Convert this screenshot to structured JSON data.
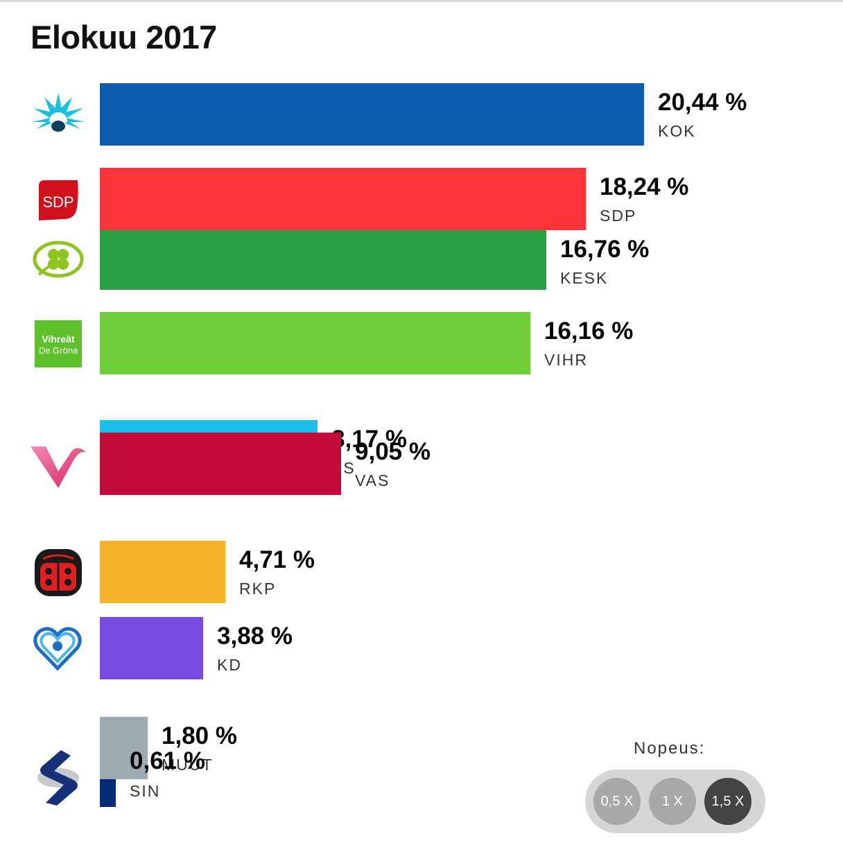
{
  "title": "Elokuu 2017",
  "chart_data": {
    "type": "bar",
    "orientation": "horizontal",
    "unit": "%",
    "xlim": [
      0,
      21
    ],
    "series": [
      {
        "code": "KOK",
        "label": "20,44 %",
        "value": 20.44,
        "color": "#0e5db1",
        "logo": "kok-cornflower-icon"
      },
      {
        "code": "SDP",
        "label": "18,24 %",
        "value": 18.24,
        "color": "#fd353b",
        "logo": "sdp-logo-icon"
      },
      {
        "code": "KESK",
        "label": "16,76 %",
        "value": 16.76,
        "color": "#279f43",
        "logo": "kesk-clover-icon"
      },
      {
        "code": "VIHR",
        "label": "16,16 %",
        "value": 16.16,
        "color": "#6fcd3a",
        "logo": "vihr-logo-icon"
      },
      {
        "code": "PS",
        "label": "8,17 %",
        "value": 8.17,
        "color": "#1cbde9",
        "logo": ""
      },
      {
        "code": "VAS",
        "label": "9,05 %",
        "value": 9.05,
        "color": "#c10a35",
        "logo": "vas-v-icon"
      },
      {
        "code": "RKP",
        "label": "4,71 %",
        "value": 4.71,
        "color": "#f5b32a",
        "logo": "rkp-ladybug-icon"
      },
      {
        "code": "KD",
        "label": "3,88 %",
        "value": 3.88,
        "color": "#774ae1",
        "logo": "kd-heart-icon"
      },
      {
        "code": "MUUT",
        "label": "1,80 %",
        "value": 1.8,
        "color": "#9fabb2",
        "logo": ""
      },
      {
        "code": "SIN",
        "label": "0,61 %",
        "value": 0.61,
        "color": "#062a76",
        "logo": "sin-s-icon"
      }
    ]
  },
  "logos": {
    "sdp_text": "SDP",
    "vihr_line1": "Vihreät",
    "vihr_line2": "De Gröna"
  },
  "speed": {
    "label": "Nopeus:",
    "options": [
      "0,5 X",
      "1 X",
      "1,5 X"
    ],
    "selected": "1,5 X"
  }
}
